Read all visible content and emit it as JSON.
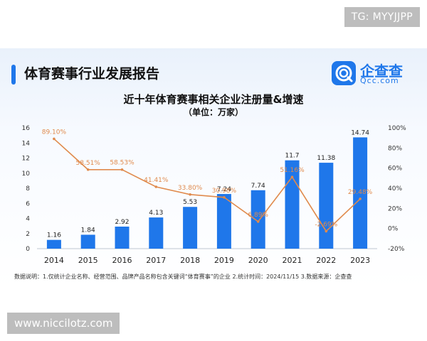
{
  "watermark_top": "TG: MYYJJPP",
  "watermark_bottom": "www.niccilotz.com",
  "report_title": "体育赛事行业发展报告",
  "logo": {
    "name": "企查查",
    "domain": "Qcc.com",
    "icon": "qcc-logo-icon"
  },
  "footnote": "数据说明：1.仅统计企业名称、经营范围、品牌产品名称包含关键词“体育赛事”的企业  2.统计时间：2024/11/15  3.数据来源：企查查",
  "colors": {
    "bar": "#1f77ea",
    "line": "#e08a4c",
    "accent": "#1f77ea"
  },
  "chart_data": {
    "type": "bar",
    "title": "近十年体育赛事相关企业注册量&增速",
    "subtitle": "（单位：万家）",
    "categories": [
      "2014",
      "2015",
      "2016",
      "2017",
      "2018",
      "2019",
      "2020",
      "2021",
      "2022",
      "2023"
    ],
    "series": [
      {
        "values": [
          1.16,
          1.84,
          2.92,
          4.13,
          5.53,
          7.24,
          7.74,
          11.7,
          11.38,
          14.74
        ],
        "labels": [
          "1.16",
          "1.84",
          "2.92",
          "4.13",
          "5.53",
          "7.24",
          "7.74",
          "11.7",
          "11.38",
          "14.74"
        ]
      },
      {
        "type": "line",
        "axis": "right",
        "values": [
          89.1,
          58.51,
          58.53,
          41.41,
          33.8,
          30.98,
          6.89,
          51.16,
          -2.69,
          29.48
        ],
        "labels": [
          "89.10%",
          "58.51%",
          "58.53%",
          "41.41%",
          "33.80%",
          "30.98%",
          "6.89%",
          "51.16%",
          "-2.69%",
          "29.48%"
        ]
      }
    ],
    "ylim": [
      0,
      16
    ],
    "yticks": [
      0,
      2,
      4,
      6,
      8,
      10,
      12,
      14,
      16
    ],
    "y2lim": [
      -20,
      100
    ],
    "y2ticks": [
      -20,
      0,
      20,
      40,
      60,
      80,
      100
    ],
    "y2ticklabels": [
      "-20%",
      "0%",
      "20%",
      "40%",
      "60%",
      "80%",
      "100%"
    ],
    "grid": false,
    "legend": "none"
  }
}
